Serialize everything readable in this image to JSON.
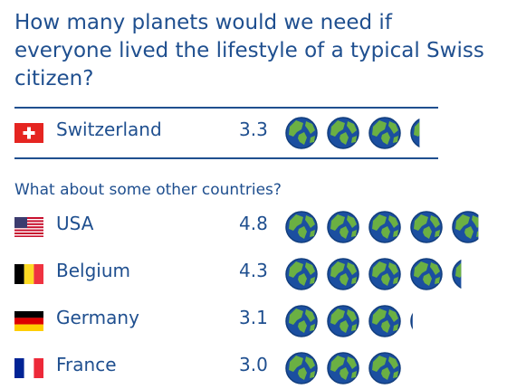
{
  "title": "How many planets would we need if everyone lived the lifestyle of a typical Swiss citizen?",
  "subtitle": "What about some other countries?",
  "colors": {
    "text": "#1f4f8f",
    "ocean": "#1b4fa0",
    "land": "#6bb043",
    "outline": "#123e7d"
  },
  "icon": "earth-globe-icon",
  "chart_data": {
    "type": "pictograph",
    "unit_icon": "earth-globe-icon",
    "rows": [
      {
        "country": "Switzerland",
        "value": 3.3,
        "value_label": "3.3",
        "flag": "switzerland-flag-icon"
      },
      {
        "country": "USA",
        "value": 4.8,
        "value_label": "4.8",
        "flag": "usa-flag-icon"
      },
      {
        "country": "Belgium",
        "value": 4.3,
        "value_label": "4.3",
        "flag": "belgium-flag-icon"
      },
      {
        "country": "Germany",
        "value": 3.1,
        "value_label": "3.1",
        "flag": "germany-flag-icon"
      },
      {
        "country": "France",
        "value": 3.0,
        "value_label": "3.0",
        "flag": "france-flag-icon"
      }
    ]
  }
}
